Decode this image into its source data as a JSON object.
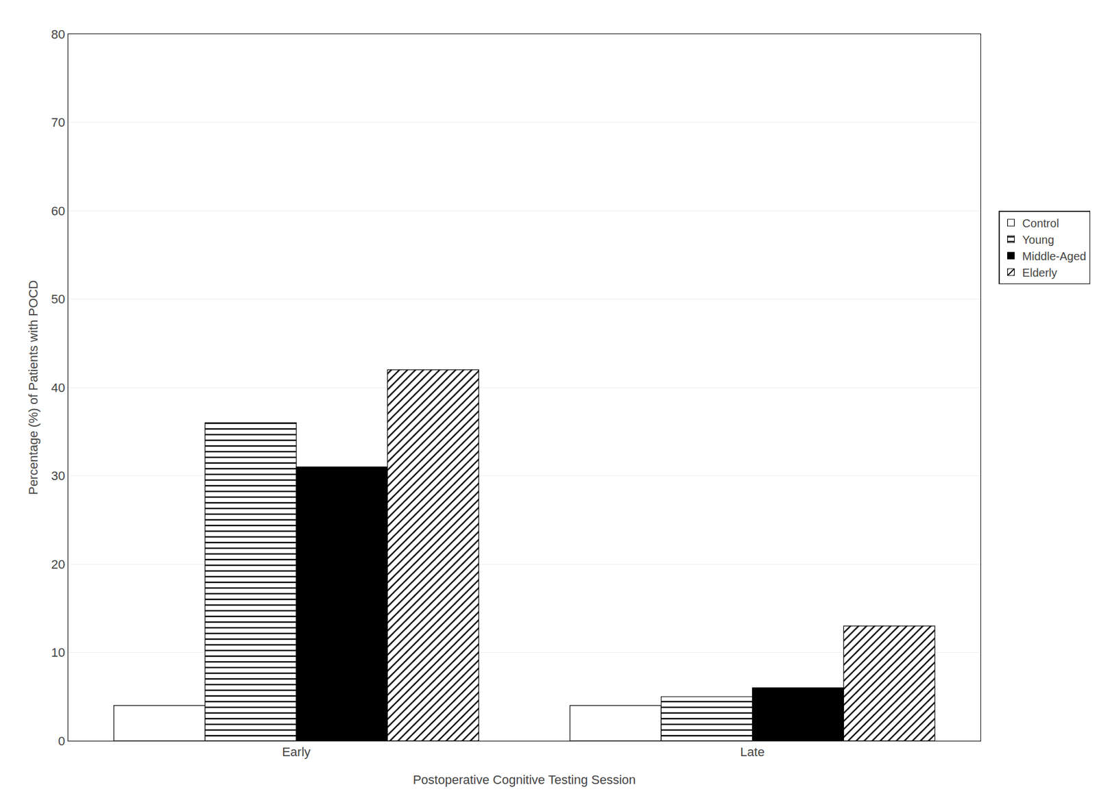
{
  "chart_data": {
    "type": "bar",
    "xlabel": "Postoperative Cognitive Testing Session",
    "ylabel": "Percentage (%) of Patients with POCD",
    "categories": [
      "Early",
      "Late"
    ],
    "series": [
      {
        "name": "Control",
        "color": "white",
        "marker": "solid",
        "values": [
          4,
          4
        ]
      },
      {
        "name": "Young",
        "color": "white",
        "marker": "horizontal",
        "values": [
          36,
          5
        ]
      },
      {
        "name": "Middle-Aged",
        "color": "black",
        "marker": "solid",
        "values": [
          31,
          6
        ]
      },
      {
        "name": "Elderly",
        "color": "white",
        "marker": "diagonal",
        "values": [
          42,
          13
        ]
      }
    ],
    "ylim": [
      0,
      80
    ],
    "yticks": [
      0,
      10,
      20,
      30,
      40,
      50,
      60,
      70,
      80
    ],
    "grid": true,
    "legend": "right"
  }
}
